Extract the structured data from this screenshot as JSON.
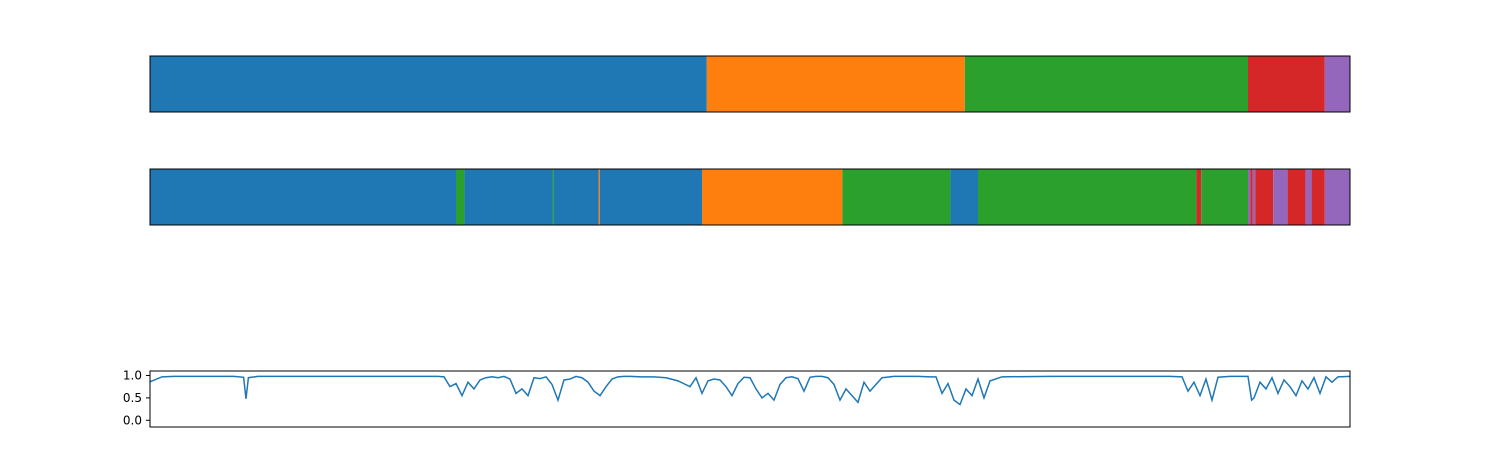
{
  "colors": {
    "c0": "#1f77b4",
    "c1": "#ff7f0e",
    "c2": "#2ca02c",
    "c3": "#d62728",
    "c4": "#9467bd",
    "line": "#1f77b4"
  },
  "chart_data": [
    {
      "type": "segment_bar",
      "title": "",
      "xlim": [
        0,
        1
      ],
      "segments": [
        {
          "start": 0.0,
          "end": 0.464,
          "class": "c0"
        },
        {
          "start": 0.464,
          "end": 0.679,
          "class": "c1"
        },
        {
          "start": 0.679,
          "end": 0.915,
          "class": "c2"
        },
        {
          "start": 0.915,
          "end": 0.979,
          "class": "c3"
        },
        {
          "start": 0.979,
          "end": 1.0,
          "class": "c4"
        }
      ]
    },
    {
      "type": "segment_bar",
      "title": "",
      "xlim": [
        0,
        1
      ],
      "segments": [
        {
          "start": 0.0,
          "end": 0.255,
          "class": "c0"
        },
        {
          "start": 0.255,
          "end": 0.262,
          "class": "c2"
        },
        {
          "start": 0.262,
          "end": 0.335,
          "class": "c0"
        },
        {
          "start": 0.335,
          "end": 0.336,
          "class": "c2"
        },
        {
          "start": 0.336,
          "end": 0.374,
          "class": "c0"
        },
        {
          "start": 0.374,
          "end": 0.375,
          "class": "c1"
        },
        {
          "start": 0.375,
          "end": 0.46,
          "class": "c0"
        },
        {
          "start": 0.46,
          "end": 0.577,
          "class": "c1"
        },
        {
          "start": 0.577,
          "end": 0.667,
          "class": "c2"
        },
        {
          "start": 0.667,
          "end": 0.69,
          "class": "c0"
        },
        {
          "start": 0.69,
          "end": 0.872,
          "class": "c2"
        },
        {
          "start": 0.872,
          "end": 0.876,
          "class": "c3"
        },
        {
          "start": 0.876,
          "end": 0.915,
          "class": "c2"
        },
        {
          "start": 0.915,
          "end": 0.917,
          "class": "c4"
        },
        {
          "start": 0.917,
          "end": 0.919,
          "class": "c3"
        },
        {
          "start": 0.919,
          "end": 0.921,
          "class": "c4"
        },
        {
          "start": 0.921,
          "end": 0.936,
          "class": "c3"
        },
        {
          "start": 0.936,
          "end": 0.948,
          "class": "c4"
        },
        {
          "start": 0.948,
          "end": 0.963,
          "class": "c3"
        },
        {
          "start": 0.963,
          "end": 0.968,
          "class": "c4"
        },
        {
          "start": 0.968,
          "end": 0.979,
          "class": "c3"
        },
        {
          "start": 0.979,
          "end": 1.0,
          "class": "c4"
        }
      ]
    },
    {
      "type": "line",
      "title": "",
      "xlabel": "",
      "ylabel": "",
      "xlim": [
        0,
        1
      ],
      "ylim": [
        -0.15,
        1.1
      ],
      "yticks": [
        0.0,
        0.5,
        1.0
      ],
      "ytick_labels": [
        "0.0",
        "0.5",
        "1.0"
      ],
      "x": [
        0.0,
        0.01,
        0.02,
        0.03,
        0.04,
        0.05,
        0.06,
        0.07,
        0.078,
        0.08,
        0.082,
        0.09,
        0.1,
        0.15,
        0.2,
        0.23,
        0.24,
        0.245,
        0.25,
        0.255,
        0.26,
        0.265,
        0.27,
        0.275,
        0.28,
        0.285,
        0.29,
        0.295,
        0.3,
        0.305,
        0.31,
        0.315,
        0.32,
        0.325,
        0.33,
        0.335,
        0.34,
        0.345,
        0.35,
        0.355,
        0.36,
        0.365,
        0.37,
        0.375,
        0.38,
        0.385,
        0.39,
        0.395,
        0.4,
        0.41,
        0.42,
        0.43,
        0.44,
        0.45,
        0.455,
        0.46,
        0.465,
        0.47,
        0.475,
        0.48,
        0.485,
        0.49,
        0.495,
        0.5,
        0.505,
        0.51,
        0.515,
        0.52,
        0.525,
        0.53,
        0.535,
        0.54,
        0.545,
        0.55,
        0.555,
        0.56,
        0.565,
        0.57,
        0.575,
        0.58,
        0.585,
        0.59,
        0.595,
        0.6,
        0.61,
        0.62,
        0.63,
        0.64,
        0.65,
        0.655,
        0.66,
        0.665,
        0.67,
        0.675,
        0.68,
        0.685,
        0.69,
        0.695,
        0.7,
        0.71,
        0.75,
        0.8,
        0.85,
        0.86,
        0.865,
        0.87,
        0.875,
        0.88,
        0.885,
        0.89,
        0.9,
        0.91,
        0.915,
        0.918,
        0.92,
        0.925,
        0.93,
        0.935,
        0.94,
        0.945,
        0.95,
        0.955,
        0.96,
        0.965,
        0.97,
        0.975,
        0.98,
        0.985,
        0.99,
        1.0
      ],
      "y": [
        0.86,
        0.97,
        0.98,
        0.98,
        0.98,
        0.98,
        0.98,
        0.98,
        0.96,
        0.48,
        0.95,
        0.98,
        0.98,
        0.98,
        0.98,
        0.98,
        0.98,
        0.97,
        0.75,
        0.82,
        0.55,
        0.85,
        0.7,
        0.9,
        0.95,
        0.97,
        0.95,
        0.98,
        0.92,
        0.6,
        0.7,
        0.55,
        0.95,
        0.93,
        0.97,
        0.8,
        0.45,
        0.9,
        0.92,
        0.98,
        0.95,
        0.85,
        0.65,
        0.55,
        0.75,
        0.92,
        0.97,
        0.98,
        0.98,
        0.97,
        0.97,
        0.95,
        0.88,
        0.75,
        0.95,
        0.6,
        0.88,
        0.92,
        0.9,
        0.75,
        0.55,
        0.82,
        0.96,
        0.95,
        0.7,
        0.5,
        0.6,
        0.45,
        0.8,
        0.95,
        0.97,
        0.93,
        0.65,
        0.96,
        0.98,
        0.98,
        0.95,
        0.8,
        0.45,
        0.7,
        0.55,
        0.4,
        0.85,
        0.65,
        0.95,
        0.98,
        0.98,
        0.98,
        0.97,
        0.97,
        0.6,
        0.82,
        0.45,
        0.35,
        0.7,
        0.55,
        0.92,
        0.5,
        0.88,
        0.97,
        0.98,
        0.98,
        0.98,
        0.97,
        0.65,
        0.85,
        0.55,
        0.92,
        0.45,
        0.96,
        0.98,
        0.98,
        0.98,
        0.45,
        0.5,
        0.85,
        0.7,
        0.95,
        0.6,
        0.9,
        0.75,
        0.55,
        0.88,
        0.7,
        0.95,
        0.6,
        0.97,
        0.85,
        0.97,
        0.98
      ]
    }
  ]
}
